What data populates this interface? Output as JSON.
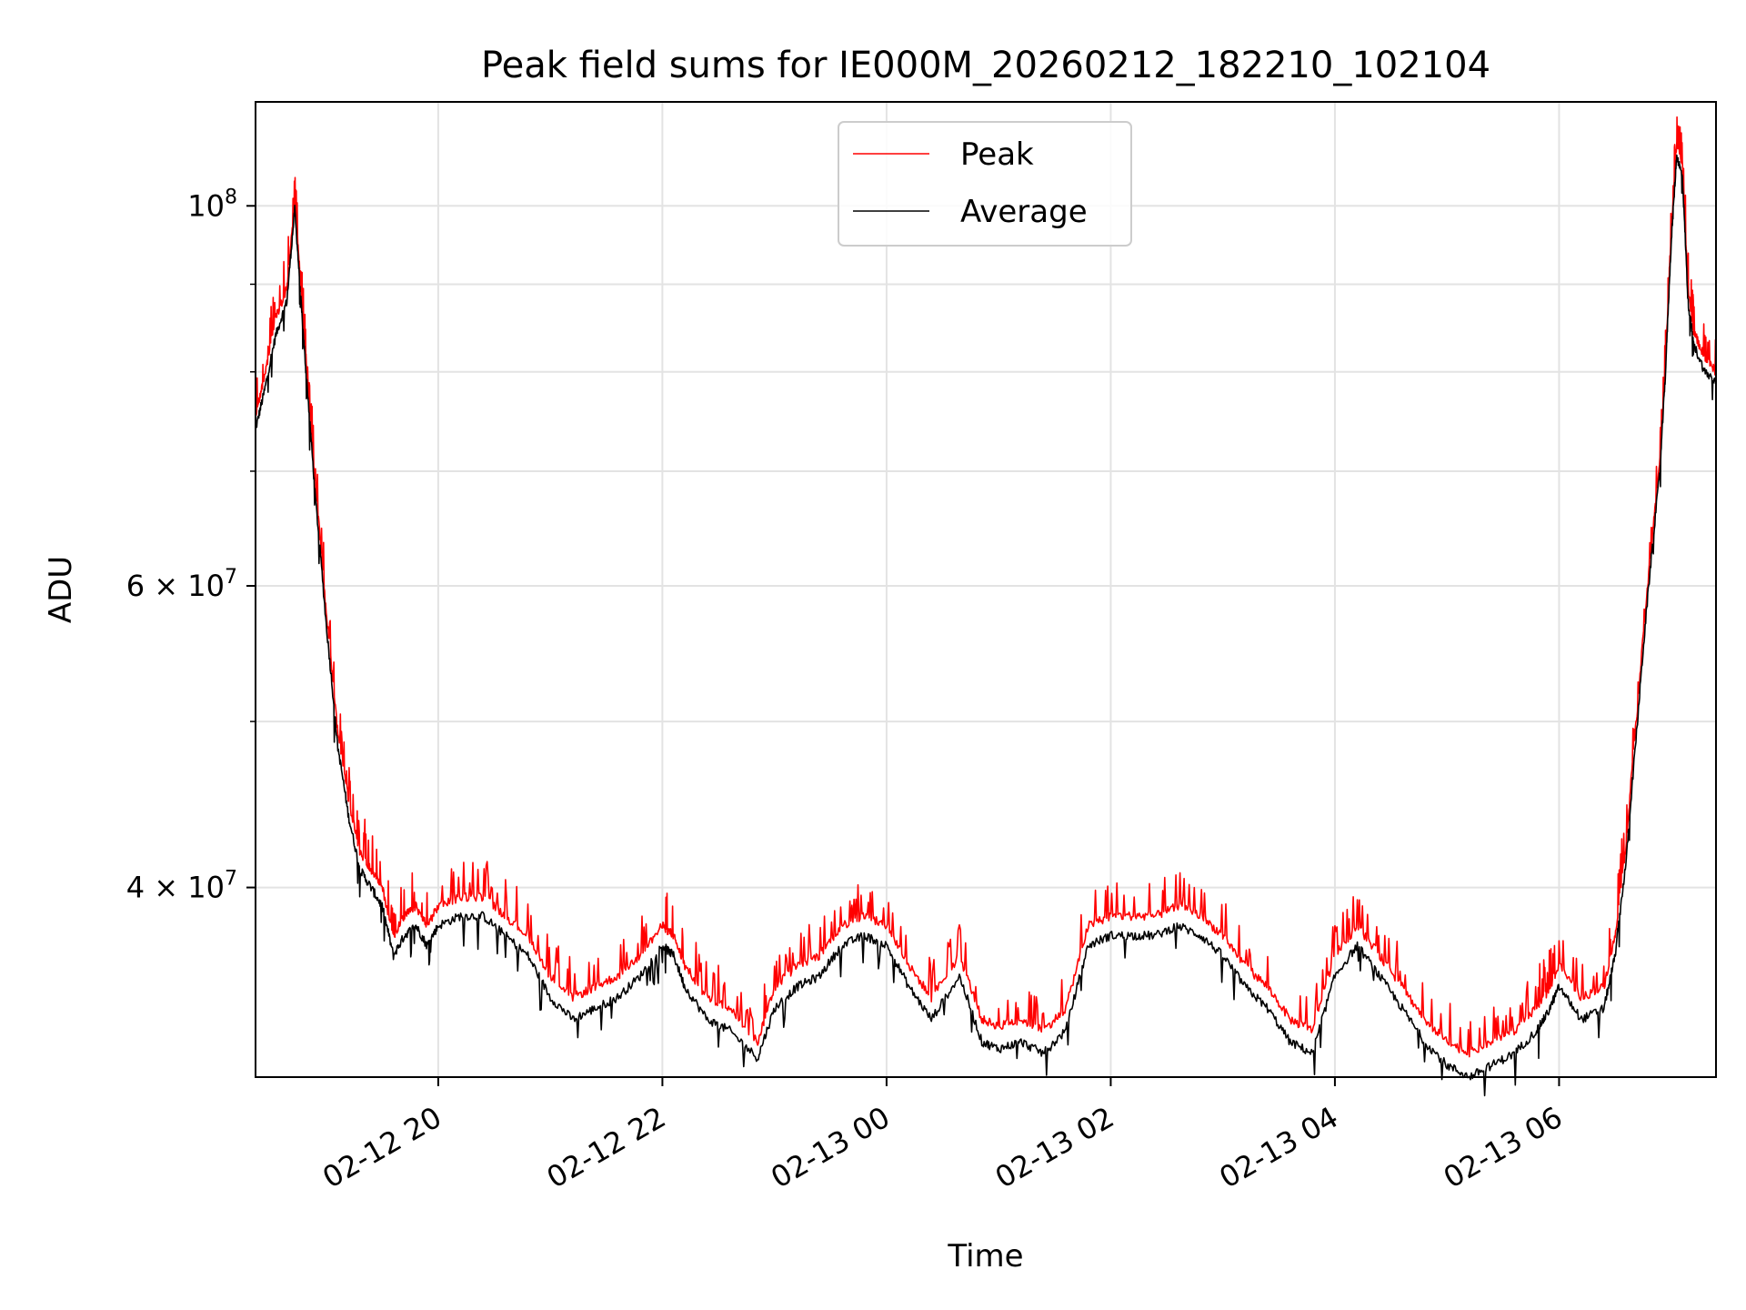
{
  "chart_data": {
    "type": "line",
    "title": "Peak field sums for IE000M_20260212_182210_102104",
    "xlabel": "Time",
    "ylabel": "ADU",
    "yscale": "log",
    "ylim": [
      31000000,
      115000000
    ],
    "xlim_hours": [
      18.37,
      31.4
    ],
    "grid": true,
    "legend_position": "upper center",
    "x_ticks": [
      {
        "hour": 20,
        "label": "02-12 20"
      },
      {
        "hour": 22,
        "label": "02-12 22"
      },
      {
        "hour": 24,
        "label": "02-13 00"
      },
      {
        "hour": 26,
        "label": "02-13 02"
      },
      {
        "hour": 28,
        "label": "02-13 04"
      },
      {
        "hour": 30,
        "label": "02-13 06"
      }
    ],
    "y_ticks": [
      {
        "value": 40000000,
        "base": "4",
        "exp": "7"
      },
      {
        "value": 60000000,
        "base": "6",
        "exp": "7"
      },
      {
        "value": 100000000,
        "base": "10",
        "exp": "8"
      }
    ],
    "y_minor_ticks": [
      50000000,
      70000000,
      80000000,
      90000000
    ],
    "x_hours": [
      18.37,
      18.45,
      18.55,
      18.65,
      18.72,
      18.78,
      18.82,
      18.9,
      19.0,
      19.1,
      19.2,
      19.3,
      19.4,
      19.5,
      19.6,
      19.7,
      19.8,
      19.9,
      20.0,
      20.2,
      20.4,
      20.6,
      20.8,
      21.0,
      21.2,
      21.4,
      21.6,
      21.8,
      22.0,
      22.1,
      22.2,
      22.4,
      22.6,
      22.85,
      23.0,
      23.2,
      23.4,
      23.6,
      23.8,
      24.0,
      24.2,
      24.4,
      24.65,
      24.85,
      25.0,
      25.2,
      25.4,
      25.6,
      25.8,
      26.0,
      26.2,
      26.4,
      26.6,
      26.8,
      27.0,
      27.2,
      27.4,
      27.6,
      27.8,
      28.0,
      28.2,
      28.4,
      28.6,
      28.8,
      29.0,
      29.2,
      29.4,
      29.6,
      29.8,
      29.9,
      30.0,
      30.2,
      30.4,
      30.5,
      30.6,
      30.7,
      30.8,
      30.9,
      30.95,
      31.0,
      31.05,
      31.1,
      31.15,
      31.2,
      31.3,
      31.4
    ],
    "series": [
      {
        "name": "Average",
        "color": "#000000",
        "values": [
          74000000,
          78000000,
          84000000,
          88000000,
          99500000,
          87000000,
          80000000,
          68000000,
          57000000,
          48500000,
          44000000,
          41000000,
          40000000,
          39000000,
          36500000,
          37500000,
          38000000,
          37000000,
          38000000,
          38500000,
          38500000,
          37500000,
          36500000,
          34500000,
          33500000,
          34000000,
          34500000,
          35500000,
          37000000,
          36500000,
          35000000,
          33500000,
          33000000,
          31800000,
          34000000,
          35000000,
          35500000,
          37000000,
          37500000,
          37000000,
          35000000,
          33500000,
          35500000,
          32500000,
          32200000,
          32500000,
          32000000,
          33000000,
          37000000,
          37500000,
          37500000,
          37500000,
          38000000,
          37500000,
          36500000,
          35000000,
          34000000,
          32500000,
          32000000,
          35500000,
          37000000,
          35500000,
          34000000,
          32500000,
          31500000,
          31000000,
          31500000,
          32000000,
          33000000,
          33800000,
          35000000,
          33500000,
          34000000,
          36500000,
          41500000,
          50000000,
          60000000,
          70000000,
          80000000,
          95000000,
          107000000,
          104000000,
          88000000,
          83000000,
          80000000,
          79000000
        ]
      },
      {
        "name": "Peak",
        "color": "#ff0000",
        "values": [
          75500000,
          79500000,
          86000000,
          89500000,
          100500000,
          88500000,
          81500000,
          69000000,
          58000000,
          49500000,
          45000000,
          42000000,
          41000000,
          40000000,
          37500000,
          38500000,
          39000000,
          38000000,
          39000000,
          39500000,
          39500000,
          38500000,
          37500000,
          35500000,
          34500000,
          35000000,
          35500000,
          36500000,
          38000000,
          37500000,
          36000000,
          34500000,
          34000000,
          32500000,
          35000000,
          36000000,
          36500000,
          38000000,
          38500000,
          38000000,
          36000000,
          34500000,
          36500000,
          33500000,
          33200000,
          33500000,
          33000000,
          34000000,
          38000000,
          38500000,
          38500000,
          38500000,
          39000000,
          38500000,
          37500000,
          36000000,
          35000000,
          33500000,
          33000000,
          36500000,
          38000000,
          36500000,
          35000000,
          33500000,
          32500000,
          32000000,
          32500000,
          33000000,
          34000000,
          34800000,
          36000000,
          34500000,
          35000000,
          37500000,
          42500000,
          51000000,
          61000000,
          71000000,
          81000000,
          96500000,
          109000000,
          106000000,
          89500000,
          84500000,
          81500000,
          80000000
        ]
      }
    ]
  }
}
